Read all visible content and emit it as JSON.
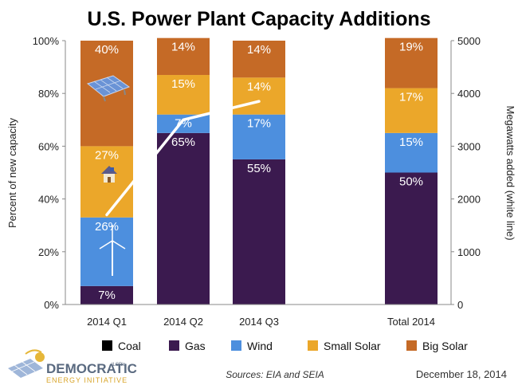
{
  "colors": {
    "Coal": "#000000",
    "Gas": "#3b1a4f",
    "Wind": "#4d8fde",
    "Small Solar": "#eba72a",
    "Big Solar": "#c56a26",
    "line": "#ffffff"
  },
  "chart_data": {
    "type": "bar",
    "stacked": true,
    "title": "U.S. Power Plant Capacity Additions",
    "ylabel": "Percent of new capacity",
    "y2label": "Megawatts added (white line)",
    "ylim": [
      0,
      100
    ],
    "y2lim": [
      0,
      5000
    ],
    "yticks": [
      "0%",
      "20%",
      "40%",
      "60%",
      "80%",
      "100%"
    ],
    "y2ticks": [
      "0",
      "1000",
      "2000",
      "3000",
      "4000",
      "5000"
    ],
    "categories": [
      "2014 Q1",
      "2014 Q2",
      "2014 Q3",
      "Total 2014"
    ],
    "series": [
      {
        "name": "Coal",
        "values": [
          0,
          0,
          0,
          0
        ],
        "labels": [
          "",
          "",
          "",
          ""
        ]
      },
      {
        "name": "Gas",
        "values": [
          7,
          65,
          55,
          50
        ],
        "labels": [
          "7%",
          "65%",
          "55%",
          "50%"
        ]
      },
      {
        "name": "Wind",
        "values": [
          26,
          7,
          17,
          15
        ],
        "labels": [
          "26%",
          "7%",
          "17%",
          "15%"
        ]
      },
      {
        "name": "Small Solar",
        "values": [
          27,
          15,
          14,
          17
        ],
        "labels": [
          "27%",
          "15%",
          "14%",
          "17%"
        ]
      },
      {
        "name": "Big Solar",
        "values": [
          40,
          14,
          14,
          19
        ],
        "labels": [
          "40%",
          "14%",
          "14%",
          "19%"
        ]
      }
    ],
    "line": {
      "name": "Megawatts added",
      "axis": "right",
      "x": [
        "2014 Q1",
        "2014 Q2",
        "2014 Q3"
      ],
      "y": [
        1700,
        3500,
        3850
      ]
    },
    "legend": [
      "Coal",
      "Gas",
      "Wind",
      "Small Solar",
      "Big Solar"
    ],
    "legend_position": "bottom",
    "grid": false
  },
  "footer": {
    "source": "Sources: EIA and SEIA",
    "date": "December 18, 2014",
    "logo_main": "DEMOCRATIC",
    "logo_sub": "ENERGY INITIATIVE",
    "logo_tag": "ILSR's"
  }
}
